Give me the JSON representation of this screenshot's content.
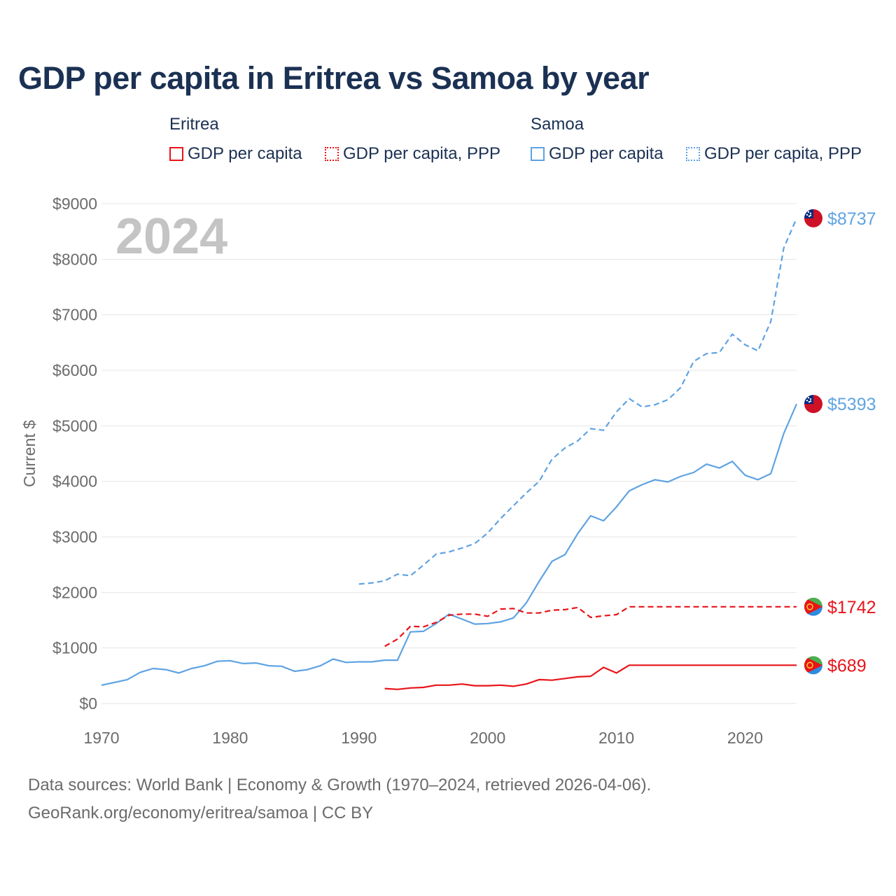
{
  "title": "GDP per capita in Eritrea vs Samoa by year",
  "legend": {
    "groups": [
      {
        "country": "Eritrea",
        "items": [
          {
            "label": "GDP per capita",
            "style": "solid",
            "color": "#e8141a"
          },
          {
            "label": "GDP per capita, PPP",
            "style": "dotted",
            "color": "#e8141a"
          }
        ]
      },
      {
        "country": "Samoa",
        "items": [
          {
            "label": "GDP per capita",
            "style": "solid",
            "color": "#5fa3e3"
          },
          {
            "label": "GDP per capita, PPP",
            "style": "dotted",
            "color": "#5fa3e3"
          }
        ]
      }
    ]
  },
  "year_watermark": "2024",
  "footer": {
    "line1": "Data sources: World Bank | Economy & Growth (1970–2024, retrieved 2026-04-06).",
    "line2": "GeoRank.org/economy/eritrea/samoa | CC BY"
  },
  "chart_data": {
    "type": "line",
    "title": "GDP per capita in Eritrea vs Samoa by year",
    "xlabel": "",
    "ylabel": "Current $",
    "xlim": [
      1970,
      2024
    ],
    "ylim": [
      0,
      9000
    ],
    "x_ticks": [
      1970,
      1980,
      1990,
      2000,
      2010,
      2020
    ],
    "y_ticks": [
      {
        "value": 0,
        "label": "$0"
      },
      {
        "value": 1000,
        "label": "$1000"
      },
      {
        "value": 2000,
        "label": "$2000"
      },
      {
        "value": 3000,
        "label": "$3000"
      },
      {
        "value": 4000,
        "label": "$4000"
      },
      {
        "value": 5000,
        "label": "$5000"
      },
      {
        "value": 6000,
        "label": "$6000"
      },
      {
        "value": 7000,
        "label": "$7000"
      },
      {
        "value": 8000,
        "label": "$8000"
      },
      {
        "value": 9000,
        "label": "$9000"
      }
    ],
    "grid": true,
    "series": [
      {
        "name": "Samoa GDP per capita",
        "country": "Samoa",
        "color": "#5fa3e3",
        "dash": "solid",
        "end_label": "$5393",
        "end_value": 5393,
        "x": [
          1970,
          1971,
          1972,
          1973,
          1974,
          1975,
          1976,
          1977,
          1978,
          1979,
          1980,
          1981,
          1982,
          1983,
          1984,
          1985,
          1986,
          1987,
          1988,
          1989,
          1990,
          1991,
          1992,
          1993,
          1994,
          1995,
          1996,
          1997,
          1998,
          1999,
          2000,
          2001,
          2002,
          2003,
          2004,
          2005,
          2006,
          2007,
          2008,
          2009,
          2010,
          2011,
          2012,
          2013,
          2014,
          2015,
          2016,
          2017,
          2018,
          2019,
          2020,
          2021,
          2022,
          2023,
          2024
        ],
        "values": [
          330,
          380,
          430,
          560,
          630,
          610,
          550,
          630,
          680,
          760,
          770,
          720,
          730,
          680,
          670,
          580,
          610,
          680,
          800,
          740,
          750,
          750,
          780,
          780,
          1290,
          1300,
          1440,
          1610,
          1520,
          1430,
          1440,
          1470,
          1540,
          1810,
          2200,
          2560,
          2680,
          3060,
          3380,
          3290,
          3540,
          3830,
          3940,
          4030,
          3990,
          4090,
          4160,
          4310,
          4240,
          4360,
          4110,
          4030,
          4140,
          4860,
          5393
        ]
      },
      {
        "name": "Samoa GDP per capita, PPP",
        "country": "Samoa",
        "color": "#5fa3e3",
        "dash": "dashed",
        "end_label": "$8737",
        "end_value": 8737,
        "x": [
          1990,
          1991,
          1992,
          1993,
          1994,
          1995,
          1996,
          1997,
          1998,
          1999,
          2000,
          2001,
          2002,
          2003,
          2004,
          2005,
          2006,
          2007,
          2008,
          2009,
          2010,
          2011,
          2012,
          2013,
          2014,
          2015,
          2016,
          2017,
          2018,
          2019,
          2020,
          2021,
          2022,
          2023,
          2024
        ],
        "values": [
          2150,
          2170,
          2210,
          2330,
          2300,
          2490,
          2690,
          2730,
          2800,
          2880,
          3070,
          3330,
          3560,
          3790,
          4000,
          4400,
          4600,
          4730,
          4950,
          4920,
          5250,
          5490,
          5340,
          5380,
          5470,
          5690,
          6160,
          6300,
          6320,
          6650,
          6460,
          6350,
          6880,
          8200,
          8737
        ]
      },
      {
        "name": "Eritrea GDP per capita",
        "country": "Eritrea",
        "color": "#e8141a",
        "dash": "solid",
        "end_label": "$689",
        "end_value": 689,
        "x": [
          1992,
          1993,
          1994,
          1995,
          1996,
          1997,
          1998,
          1999,
          2000,
          2001,
          2002,
          2003,
          2004,
          2005,
          2006,
          2007,
          2008,
          2009,
          2010,
          2011,
          2024
        ],
        "values": [
          270,
          255,
          280,
          290,
          330,
          330,
          350,
          320,
          320,
          330,
          310,
          350,
          430,
          420,
          450,
          480,
          490,
          650,
          550,
          689,
          689
        ]
      },
      {
        "name": "Eritrea GDP per capita, PPP",
        "country": "Eritrea",
        "color": "#e8141a",
        "dash": "dashed",
        "end_label": "$1742",
        "end_value": 1742,
        "x": [
          1992,
          1993,
          1994,
          1995,
          1996,
          1997,
          1998,
          1999,
          2000,
          2001,
          2002,
          2003,
          2004,
          2005,
          2006,
          2007,
          2008,
          2009,
          2010,
          2011,
          2024
        ],
        "values": [
          1030,
          1160,
          1390,
          1380,
          1460,
          1590,
          1610,
          1610,
          1570,
          1700,
          1710,
          1630,
          1630,
          1680,
          1690,
          1730,
          1550,
          1580,
          1600,
          1742,
          1742
        ]
      }
    ]
  },
  "flags": {
    "Samoa": {
      "red": "#ce1126",
      "blue": "#002b7f",
      "star": "#ffffff"
    },
    "Eritrea": {
      "green": "#4caf50",
      "blue": "#2e8bde",
      "red": "#e8141a",
      "emblem": "#ffc726"
    }
  }
}
